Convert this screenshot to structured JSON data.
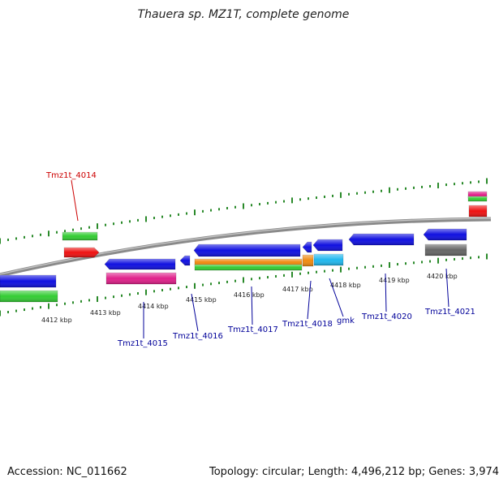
{
  "title": "Thauera sp. MZ1T, complete genome",
  "footer": {
    "accession": "Accession: NC_011662",
    "topology": "Topology: circular; Length: 4,496,212 bp; Genes: 3,974"
  },
  "colors": {
    "backbone": "#8a8a8a",
    "tick": "#2a8a2a",
    "blue": "#1010e0",
    "green": "#33cc33",
    "red": "#ee1111",
    "magenta": "#e0208a",
    "orange": "#f08a10",
    "cyan": "#20b8ee",
    "gray": "#666666",
    "label_blue": "#000099",
    "label_red": "#cc0000"
  },
  "kbp_ticks": [
    "4412 kbp",
    "4413 kbp",
    "4414 kbp",
    "4415 kbp",
    "4416 kbp",
    "4417 kbp",
    "4418 kbp",
    "4419 kbp",
    "4420 kbp"
  ],
  "gene_labels": [
    {
      "id": "tmz1t-4014",
      "text": "Tmz1t_4014",
      "color": "label_red"
    },
    {
      "id": "tmz1t-4015",
      "text": "Tmz1t_4015",
      "color": "label_blue"
    },
    {
      "id": "tmz1t-4016",
      "text": "Tmz1t_4016",
      "color": "label_blue"
    },
    {
      "id": "tmz1t-4017",
      "text": "Tmz1t_4017",
      "color": "label_blue"
    },
    {
      "id": "tmz1t-4018",
      "text": "Tmz1t_4018",
      "color": "label_blue"
    },
    {
      "id": "gmk",
      "text": "gmk",
      "color": "label_blue"
    },
    {
      "id": "tmz1t-4020",
      "text": "Tmz1t_4020",
      "color": "label_blue"
    },
    {
      "id": "tmz1t-4021",
      "text": "Tmz1t_4021",
      "color": "label_blue"
    }
  ]
}
